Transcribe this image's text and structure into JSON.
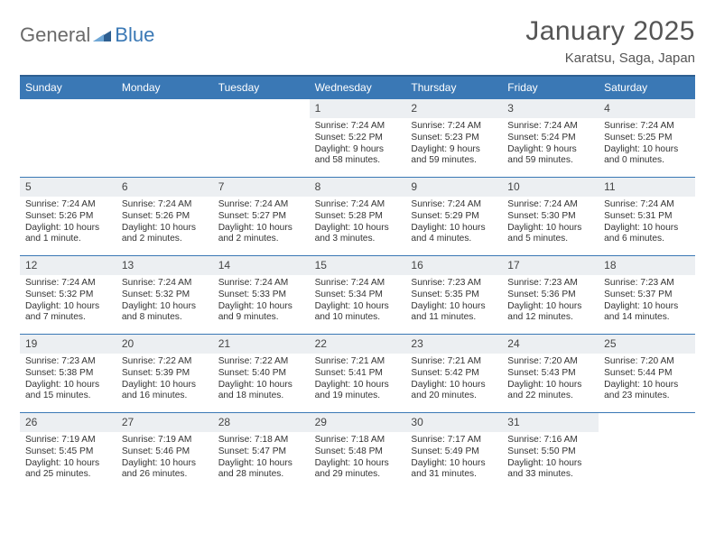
{
  "logo": {
    "text1": "General",
    "text2": "Blue",
    "mark_color": "#2e5f91"
  },
  "title": "January 2025",
  "location": "Karatsu, Saga, Japan",
  "colors": {
    "header_bg": "#3a78b5",
    "header_border": "#2e5f91",
    "shade_bg": "#eceff2",
    "text": "#333333"
  },
  "day_names": [
    "Sunday",
    "Monday",
    "Tuesday",
    "Wednesday",
    "Thursday",
    "Friday",
    "Saturday"
  ],
  "weeks": [
    [
      null,
      null,
      null,
      {
        "n": "1",
        "sr": "Sunrise: 7:24 AM",
        "ss": "Sunset: 5:22 PM",
        "dl": "Daylight: 9 hours and 58 minutes."
      },
      {
        "n": "2",
        "sr": "Sunrise: 7:24 AM",
        "ss": "Sunset: 5:23 PM",
        "dl": "Daylight: 9 hours and 59 minutes."
      },
      {
        "n": "3",
        "sr": "Sunrise: 7:24 AM",
        "ss": "Sunset: 5:24 PM",
        "dl": "Daylight: 9 hours and 59 minutes."
      },
      {
        "n": "4",
        "sr": "Sunrise: 7:24 AM",
        "ss": "Sunset: 5:25 PM",
        "dl": "Daylight: 10 hours and 0 minutes."
      }
    ],
    [
      {
        "n": "5",
        "sr": "Sunrise: 7:24 AM",
        "ss": "Sunset: 5:26 PM",
        "dl": "Daylight: 10 hours and 1 minute."
      },
      {
        "n": "6",
        "sr": "Sunrise: 7:24 AM",
        "ss": "Sunset: 5:26 PM",
        "dl": "Daylight: 10 hours and 2 minutes."
      },
      {
        "n": "7",
        "sr": "Sunrise: 7:24 AM",
        "ss": "Sunset: 5:27 PM",
        "dl": "Daylight: 10 hours and 2 minutes."
      },
      {
        "n": "8",
        "sr": "Sunrise: 7:24 AM",
        "ss": "Sunset: 5:28 PM",
        "dl": "Daylight: 10 hours and 3 minutes."
      },
      {
        "n": "9",
        "sr": "Sunrise: 7:24 AM",
        "ss": "Sunset: 5:29 PM",
        "dl": "Daylight: 10 hours and 4 minutes."
      },
      {
        "n": "10",
        "sr": "Sunrise: 7:24 AM",
        "ss": "Sunset: 5:30 PM",
        "dl": "Daylight: 10 hours and 5 minutes."
      },
      {
        "n": "11",
        "sr": "Sunrise: 7:24 AM",
        "ss": "Sunset: 5:31 PM",
        "dl": "Daylight: 10 hours and 6 minutes."
      }
    ],
    [
      {
        "n": "12",
        "sr": "Sunrise: 7:24 AM",
        "ss": "Sunset: 5:32 PM",
        "dl": "Daylight: 10 hours and 7 minutes."
      },
      {
        "n": "13",
        "sr": "Sunrise: 7:24 AM",
        "ss": "Sunset: 5:32 PM",
        "dl": "Daylight: 10 hours and 8 minutes."
      },
      {
        "n": "14",
        "sr": "Sunrise: 7:24 AM",
        "ss": "Sunset: 5:33 PM",
        "dl": "Daylight: 10 hours and 9 minutes."
      },
      {
        "n": "15",
        "sr": "Sunrise: 7:24 AM",
        "ss": "Sunset: 5:34 PM",
        "dl": "Daylight: 10 hours and 10 minutes."
      },
      {
        "n": "16",
        "sr": "Sunrise: 7:23 AM",
        "ss": "Sunset: 5:35 PM",
        "dl": "Daylight: 10 hours and 11 minutes."
      },
      {
        "n": "17",
        "sr": "Sunrise: 7:23 AM",
        "ss": "Sunset: 5:36 PM",
        "dl": "Daylight: 10 hours and 12 minutes."
      },
      {
        "n": "18",
        "sr": "Sunrise: 7:23 AM",
        "ss": "Sunset: 5:37 PM",
        "dl": "Daylight: 10 hours and 14 minutes."
      }
    ],
    [
      {
        "n": "19",
        "sr": "Sunrise: 7:23 AM",
        "ss": "Sunset: 5:38 PM",
        "dl": "Daylight: 10 hours and 15 minutes."
      },
      {
        "n": "20",
        "sr": "Sunrise: 7:22 AM",
        "ss": "Sunset: 5:39 PM",
        "dl": "Daylight: 10 hours and 16 minutes."
      },
      {
        "n": "21",
        "sr": "Sunrise: 7:22 AM",
        "ss": "Sunset: 5:40 PM",
        "dl": "Daylight: 10 hours and 18 minutes."
      },
      {
        "n": "22",
        "sr": "Sunrise: 7:21 AM",
        "ss": "Sunset: 5:41 PM",
        "dl": "Daylight: 10 hours and 19 minutes."
      },
      {
        "n": "23",
        "sr": "Sunrise: 7:21 AM",
        "ss": "Sunset: 5:42 PM",
        "dl": "Daylight: 10 hours and 20 minutes."
      },
      {
        "n": "24",
        "sr": "Sunrise: 7:20 AM",
        "ss": "Sunset: 5:43 PM",
        "dl": "Daylight: 10 hours and 22 minutes."
      },
      {
        "n": "25",
        "sr": "Sunrise: 7:20 AM",
        "ss": "Sunset: 5:44 PM",
        "dl": "Daylight: 10 hours and 23 minutes."
      }
    ],
    [
      {
        "n": "26",
        "sr": "Sunrise: 7:19 AM",
        "ss": "Sunset: 5:45 PM",
        "dl": "Daylight: 10 hours and 25 minutes."
      },
      {
        "n": "27",
        "sr": "Sunrise: 7:19 AM",
        "ss": "Sunset: 5:46 PM",
        "dl": "Daylight: 10 hours and 26 minutes."
      },
      {
        "n": "28",
        "sr": "Sunrise: 7:18 AM",
        "ss": "Sunset: 5:47 PM",
        "dl": "Daylight: 10 hours and 28 minutes."
      },
      {
        "n": "29",
        "sr": "Sunrise: 7:18 AM",
        "ss": "Sunset: 5:48 PM",
        "dl": "Daylight: 10 hours and 29 minutes."
      },
      {
        "n": "30",
        "sr": "Sunrise: 7:17 AM",
        "ss": "Sunset: 5:49 PM",
        "dl": "Daylight: 10 hours and 31 minutes."
      },
      {
        "n": "31",
        "sr": "Sunrise: 7:16 AM",
        "ss": "Sunset: 5:50 PM",
        "dl": "Daylight: 10 hours and 33 minutes."
      },
      null
    ]
  ]
}
